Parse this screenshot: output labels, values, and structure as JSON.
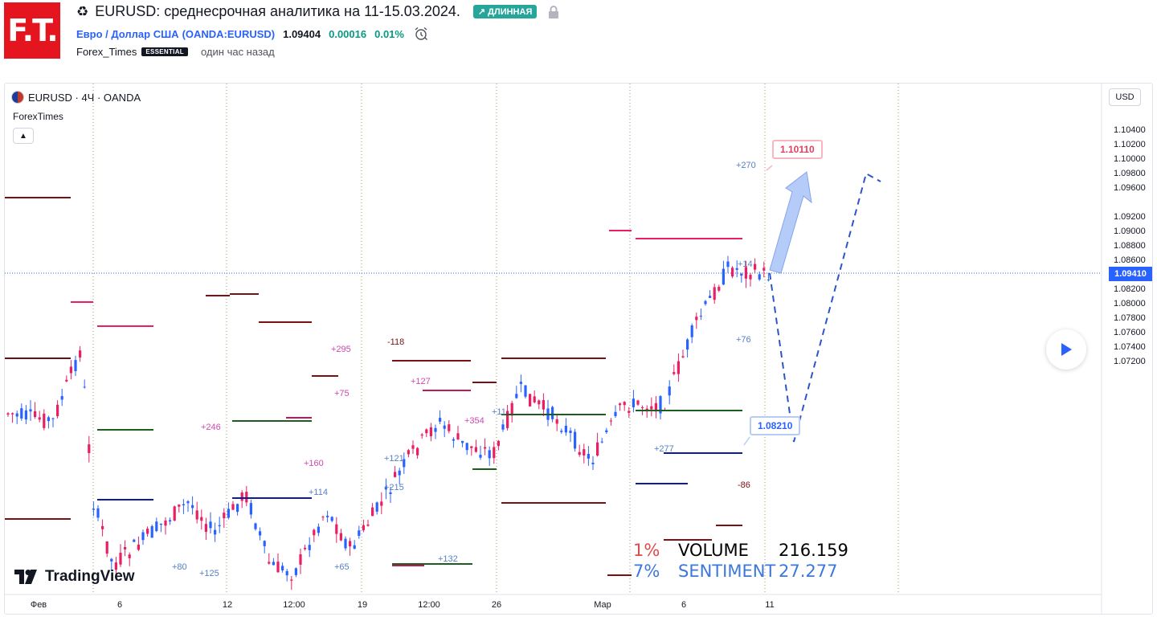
{
  "header": {
    "logo_text": "F.T.",
    "title": "EURUSD: среднесрочная аналитика на 11-15.03.2024.",
    "badge": "↗ ДЛИННАЯ",
    "symbol_name": "Евро / Доллар США",
    "symbol_code": "(OANDA:EURUSD)",
    "price": "1.09404",
    "change": "0.00016",
    "change_pct": "0.01%",
    "author": "Forex_Times",
    "author_badge": "ESSENTIAL",
    "time_ago": "один час назад"
  },
  "chart": {
    "legend": "EURUSD · 4Ч · OANDA",
    "indicator": "ForexTimes",
    "currency": "USD",
    "last_price": "1.09410",
    "brand": "TradingView",
    "target_high": "1.10110",
    "target_low": "1.08210",
    "colors": {
      "up": "#2962ff",
      "down": "#e91e63",
      "last_price": "#2962ff"
    }
  },
  "stats": {
    "volume_pct": "1%",
    "volume_label": "VOLUME",
    "volume_value": "216.159",
    "sentiment_pct": "7%",
    "sentiment_label": "SENTIMENT",
    "sentiment_value": "27.277"
  },
  "chart_data": {
    "type": "line",
    "y_ticks": [
      "1.10400",
      "1.10200",
      "1.10000",
      "1.09800",
      "1.09600",
      "1.09410",
      "1.09200",
      "1.09000",
      "1.08800",
      "1.08600",
      "1.08400",
      "1.08200",
      "1.08000",
      "1.07800",
      "1.07600",
      "1.07400",
      "1.07200"
    ],
    "x_ticks": [
      "Фев",
      "6",
      "12",
      "12:00",
      "19",
      "12:00",
      "26",
      "Мар",
      "6",
      "11"
    ],
    "annotations": [
      "+270",
      "+295",
      "-118",
      "+75",
      "+127",
      "+354",
      "+11",
      "+246",
      "+160",
      "+114",
      "+121",
      "+215",
      "+132",
      "+80",
      "+125",
      "+65",
      "+76",
      "+277",
      "-86",
      "+14"
    ]
  }
}
